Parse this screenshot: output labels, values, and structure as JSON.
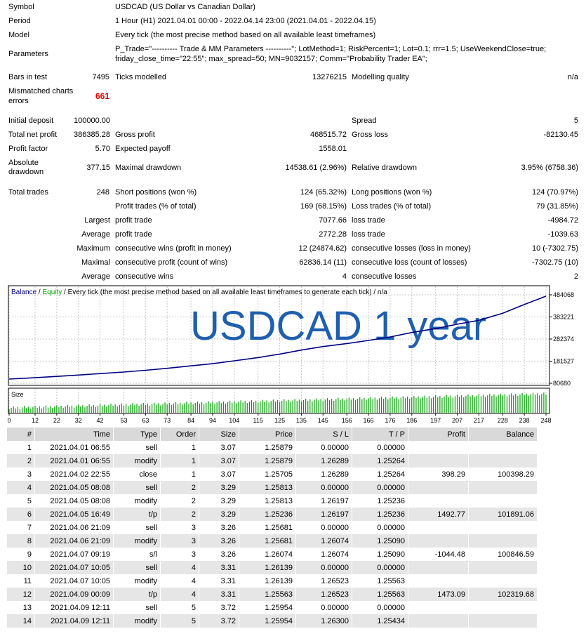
{
  "report": {
    "symbol_label": "Symbol",
    "symbol_value": "USDCAD (US Dollar vs Canadian Dollar)",
    "period_label": "Period",
    "period_value": "1 Hour (H1) 2021.04.01 00:00 - 2022.04.14 23:00 (2021.04.01 - 2022.04.15)",
    "model_label": "Model",
    "model_value": "Every tick (the most precise method based on all available least timeframes)",
    "parameters_label": "Parameters",
    "parameters_line1": "P_Trade=\"---------- Trade & MM Parameters ----------\"; LotMethod=1; RiskPercent=1; Lot=0.1; rrr=1.5; UseWeekendClose=true;",
    "parameters_line2": "friday_close_time=\"22:55\"; max_spread=50; MN=9032157; Comm=\"Probability Trader EA\";",
    "bars_label": "Bars in test",
    "bars_value": "7495",
    "ticks_label": "Ticks modelled",
    "ticks_value": "13276215",
    "quality_label": "Modelling quality",
    "quality_value": "n/a",
    "mismatched_label_1": "Mismatched charts",
    "mismatched_label_2": "errors",
    "mismatched_value": "661",
    "initial_deposit_label": "Initial deposit",
    "initial_deposit_value": "100000.00",
    "spread_label": "Spread",
    "spread_value": "5",
    "total_net_profit_label": "Total net profit",
    "total_net_profit_value": "386385.28",
    "gross_profit_label": "Gross profit",
    "gross_profit_value": "468515.72",
    "gross_loss_label": "Gross loss",
    "gross_loss_value": "-82130.45",
    "profit_factor_label": "Profit factor",
    "profit_factor_value": "5.70",
    "expected_payoff_label": "Expected payoff",
    "expected_payoff_value": "1558.01",
    "abs_dd_label_1": "Absolute",
    "abs_dd_label_2": "drawdown",
    "abs_dd_value": "377.15",
    "max_dd_label": "Maximal drawdown",
    "max_dd_value": "14538.61 (2.96%)",
    "rel_dd_label": "Relative drawdown",
    "rel_dd_value": "3.95% (6758.36)",
    "total_trades_label": "Total trades",
    "total_trades_value": "248",
    "short_label": "Short positions (won %)",
    "short_value": "124 (65.32%)",
    "long_label": "Long positions (won %)",
    "long_value": "124 (70.97%)",
    "profit_trades_label": "Profit trades (% of total)",
    "profit_trades_value": "169 (68.15%)",
    "loss_trades_label": "Loss trades (% of total)",
    "loss_trades_value": "79 (31.85%)",
    "largest_label": "Largest",
    "largest_profit_label": "profit trade",
    "largest_profit_value": "7077.66",
    "largest_loss_label": "loss trade",
    "largest_loss_value": "-4984.72",
    "average_label": "Average",
    "average_profit_label": "profit trade",
    "average_profit_value": "2772.28",
    "average_loss_label": "loss trade",
    "average_loss_value": "-1039.63",
    "maximum_label": "Maximum",
    "max_cons_wins_label": "consecutive wins (profit in money)",
    "max_cons_wins_value": "12 (24874.62)",
    "max_cons_losses_label": "consecutive losses (loss in money)",
    "max_cons_losses_value": "10 (-7302.75)",
    "maximal_label": "Maximal",
    "maximal_cons_profit_label": "consecutive profit (count of wins)",
    "maximal_cons_profit_value": "62836.14 (11)",
    "maximal_cons_loss_label": "consecutive loss (count of losses)",
    "maximal_cons_loss_value": "-7302.75 (10)",
    "average2_label": "Average",
    "avg_cons_wins_label": "consecutive wins",
    "avg_cons_wins_value": "4",
    "avg_cons_losses_label": "consecutive losses",
    "avg_cons_losses_value": "2",
    "colors": {
      "mismatched": "#e00000"
    }
  },
  "chart_data": {
    "type": "line",
    "legend_balance": "Balance",
    "legend_sep1": " / ",
    "legend_equity": "Equity",
    "legend_rest": " / Every tick (the most precise method based on all available least timeframes to generate each tick) / n/a",
    "watermark": "USDCAD 1 year",
    "size_label": "Size",
    "y_ticks": [
      "484068",
      "383221",
      "282374",
      "181527",
      "80680"
    ],
    "y_tick_values": [
      484068,
      383221,
      282374,
      181527,
      80680
    ],
    "x_ticks": [
      "0",
      "12",
      "22",
      "32",
      "42",
      "53",
      "63",
      "73",
      "84",
      "94",
      "104",
      "115",
      "125",
      "135",
      "145",
      "156",
      "166",
      "176",
      "186",
      "197",
      "207",
      "217",
      "228",
      "238",
      "248"
    ],
    "ylim": [
      80680,
      484068
    ],
    "xlim": [
      0,
      248
    ],
    "series": [
      {
        "name": "Balance",
        "color": "#000080",
        "x": [
          0,
          12,
          22,
          32,
          42,
          53,
          63,
          73,
          84,
          94,
          104,
          115,
          125,
          135,
          145,
          156,
          166,
          176,
          186,
          197,
          207,
          217,
          228,
          238,
          248
        ],
        "values": [
          100000,
          106000,
          112000,
          118000,
          125000,
          132000,
          140000,
          149000,
          160000,
          170000,
          183000,
          198000,
          214000,
          232000,
          248000,
          262000,
          276000,
          292000,
          312000,
          330000,
          350000,
          368000,
          400000,
          440000,
          478000
        ]
      }
    ],
    "size_bars_note": "",
    "colors": {
      "balance": "#000080",
      "equity": "#00a000",
      "watermark": "#1f5fae",
      "size_bars": "#00a000",
      "grid": "#c8c8c8"
    }
  },
  "table": {
    "headers": [
      "#",
      "Time",
      "Type",
      "Order",
      "Size",
      "Price",
      "S / L",
      "T / P",
      "Profit",
      "Balance"
    ],
    "rows": [
      [
        "1",
        "2021.04.01 06:55",
        "sell",
        "1",
        "3.07",
        "1.25879",
        "0.00000",
        "0.00000",
        "",
        ""
      ],
      [
        "2",
        "2021.04.01 06:55",
        "modify",
        "1",
        "3.07",
        "1.25879",
        "1.26289",
        "1.25264",
        "",
        ""
      ],
      [
        "3",
        "2021.04.02 22:55",
        "close",
        "1",
        "3.07",
        "1.25705",
        "1.26289",
        "1.25264",
        "398.29",
        "100398.29"
      ],
      [
        "4",
        "2021.04.05 08:08",
        "sell",
        "2",
        "3.29",
        "1.25813",
        "0.00000",
        "0.00000",
        "",
        ""
      ],
      [
        "5",
        "2021.04.05 08:08",
        "modify",
        "2",
        "3.29",
        "1.25813",
        "1.26197",
        "1.25236",
        "",
        ""
      ],
      [
        "6",
        "2021.04.05 16:49",
        "t/p",
        "2",
        "3.29",
        "1.25236",
        "1.26197",
        "1.25236",
        "1492.77",
        "101891.06"
      ],
      [
        "7",
        "2021.04.06 21:09",
        "sell",
        "3",
        "3.26",
        "1.25681",
        "0.00000",
        "0.00000",
        "",
        ""
      ],
      [
        "8",
        "2021.04.06 21:09",
        "modify",
        "3",
        "3.26",
        "1.25681",
        "1.26074",
        "1.25090",
        "",
        ""
      ],
      [
        "9",
        "2021.04.07 09:19",
        "s/l",
        "3",
        "3.26",
        "1.26074",
        "1.26074",
        "1.25090",
        "-1044.48",
        "100846.59"
      ],
      [
        "10",
        "2021.04.07 10:05",
        "sell",
        "4",
        "3.31",
        "1.26139",
        "0.00000",
        "0.00000",
        "",
        ""
      ],
      [
        "11",
        "2021.04.07 10:05",
        "modify",
        "4",
        "3.31",
        "1.26139",
        "1.26523",
        "1.25563",
        "",
        ""
      ],
      [
        "12",
        "2021.04.09 00:09",
        "t/p",
        "4",
        "3.31",
        "1.25563",
        "1.26523",
        "1.25563",
        "1473.09",
        "102319.68"
      ],
      [
        "13",
        "2021.04.09 12:11",
        "sell",
        "5",
        "3.72",
        "1.25954",
        "0.00000",
        "0.00000",
        "",
        ""
      ],
      [
        "14",
        "2021.04.09 12:11",
        "modify",
        "5",
        "3.72",
        "1.25954",
        "1.26300",
        "1.25434",
        "",
        ""
      ]
    ]
  }
}
